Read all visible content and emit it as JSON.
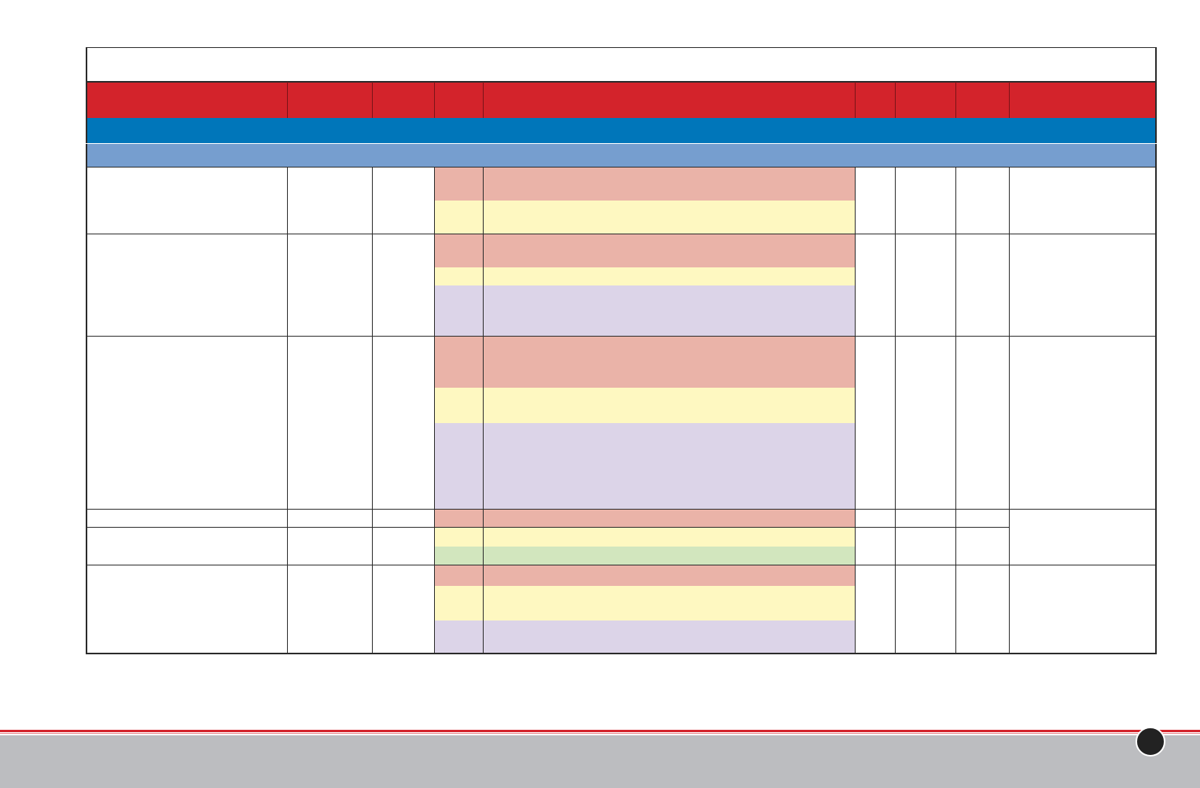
{
  "colors": {
    "header_red": "#d3232b",
    "section_blue": "#0076ba",
    "subsection_blue": "#769ecf",
    "level_red": "#eab3a8",
    "level_yellow": "#fef8c1",
    "level_purple": "#dcd4e8",
    "level_green": "#d2e6be",
    "grid_line": "#2b2b2b",
    "footer_gray": "#bcbdc0",
    "footer_red": "#d3232b",
    "page_badge": "#222222"
  },
  "table": {
    "title": "",
    "header_columns": [
      "",
      "",
      "",
      "",
      "",
      "",
      "",
      "",
      ""
    ],
    "section_heading": "",
    "subsection_heading": "",
    "row_groups": [
      {
        "levels": [
          "red",
          "yellow"
        ]
      },
      {
        "levels": [
          "red",
          "yellow",
          "purple"
        ]
      },
      {
        "levels": [
          "red",
          "yellow",
          "purple"
        ]
      },
      {
        "levels": [
          "red",
          "yellow",
          "green"
        ]
      },
      {
        "levels": [
          "red",
          "yellow",
          "purple"
        ]
      }
    ]
  },
  "footer": {
    "page_number": ""
  }
}
